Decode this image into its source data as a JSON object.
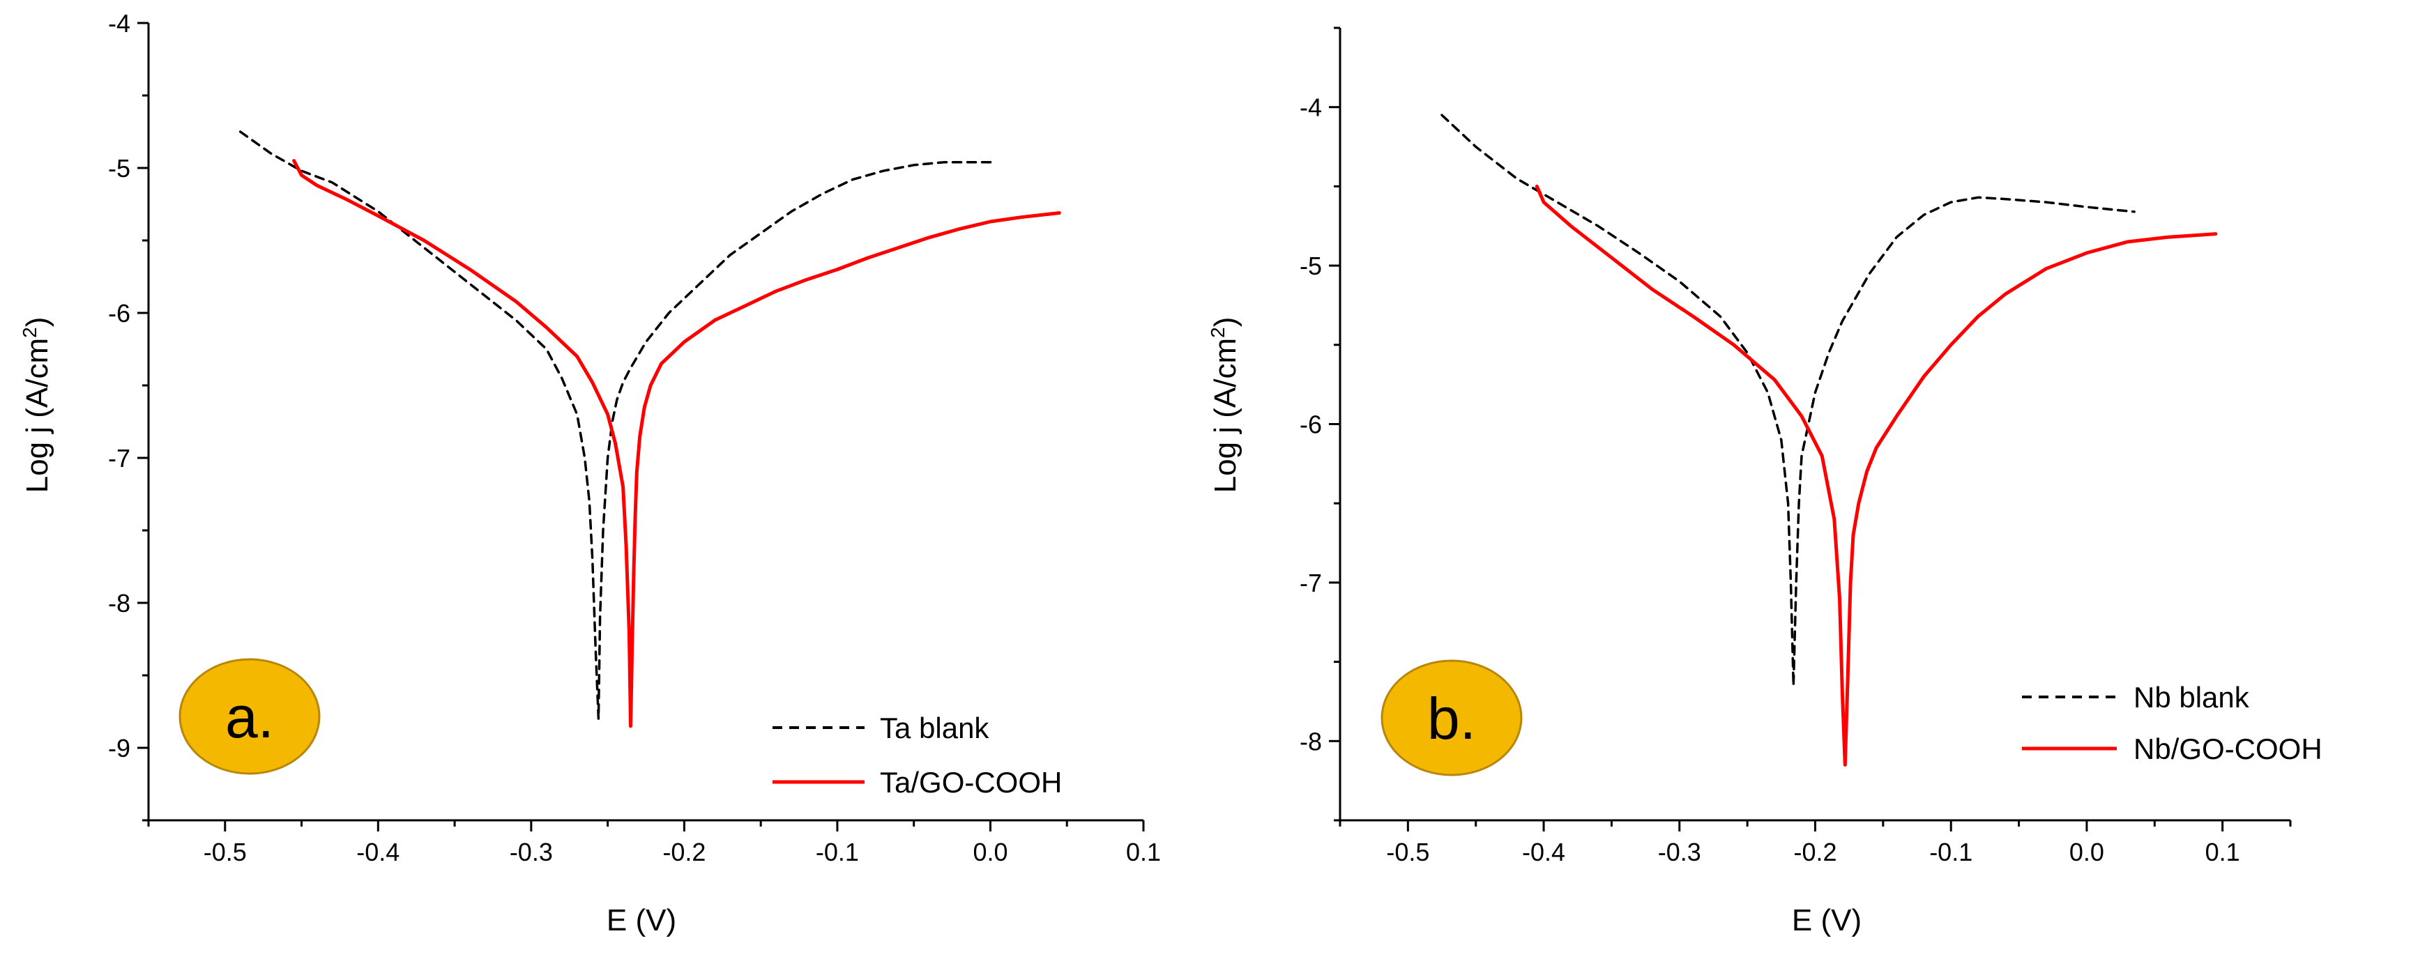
{
  "colors": {
    "blank": "#000000",
    "coated": "#ff0000",
    "badge_fill": "#f5b800",
    "badge_stroke": "#b8860b",
    "axis": "#000000"
  },
  "chart_data": [
    {
      "type": "line",
      "badge": "a.",
      "xlabel": "E (V)",
      "ylabel_main": "Log j (A/cm",
      "ylabel_sup": "2",
      "ylabel_close": ")",
      "xlim": [
        -0.55,
        0.1
      ],
      "ylim": [
        -9.5,
        -4
      ],
      "xticks": [
        -0.5,
        -0.4,
        -0.3,
        -0.2,
        -0.1,
        0.0,
        0.1
      ],
      "xtick_labels": [
        "-0.5",
        "-0.4",
        "-0.3",
        "-0.2",
        "-0.1",
        "0.0",
        "0.1"
      ],
      "yticks": [
        -9,
        -8,
        -7,
        -6,
        -5,
        -4
      ],
      "ytick_labels": [
        "-9",
        "-8",
        "-7",
        "-6",
        "-5",
        "-4"
      ],
      "legend": [
        "Ta blank",
        "Ta/GO-COOH"
      ],
      "series": [
        {
          "name": "Ta blank",
          "style": "dashed",
          "color": "#000000",
          "x": [
            -0.49,
            -0.47,
            -0.45,
            -0.43,
            -0.4,
            -0.37,
            -0.34,
            -0.31,
            -0.29,
            -0.28,
            -0.27,
            -0.265,
            -0.262,
            -0.26,
            -0.258,
            -0.256,
            -0.255,
            -0.253,
            -0.25,
            -0.247,
            -0.244,
            -0.24,
            -0.235,
            -0.225,
            -0.21,
            -0.19,
            -0.17,
            -0.15,
            -0.13,
            -0.11,
            -0.09,
            -0.07,
            -0.05,
            -0.03,
            -0.01,
            0.0
          ],
          "y": [
            -4.75,
            -4.9,
            -5.02,
            -5.1,
            -5.3,
            -5.55,
            -5.8,
            -6.05,
            -6.25,
            -6.45,
            -6.7,
            -7.0,
            -7.3,
            -7.7,
            -8.3,
            -8.8,
            -8.1,
            -7.5,
            -7.0,
            -6.75,
            -6.6,
            -6.48,
            -6.38,
            -6.2,
            -6.0,
            -5.8,
            -5.6,
            -5.45,
            -5.3,
            -5.18,
            -5.08,
            -5.02,
            -4.98,
            -4.96,
            -4.96,
            -4.96
          ]
        },
        {
          "name": "Ta/GO-COOH",
          "style": "solid",
          "color": "#ff0000",
          "x": [
            -0.455,
            -0.45,
            -0.44,
            -0.42,
            -0.4,
            -0.37,
            -0.34,
            -0.31,
            -0.29,
            -0.27,
            -0.26,
            -0.25,
            -0.245,
            -0.24,
            -0.238,
            -0.236,
            -0.235,
            -0.234,
            -0.233,
            -0.232,
            -0.231,
            -0.229,
            -0.226,
            -0.222,
            -0.215,
            -0.2,
            -0.18,
            -0.16,
            -0.14,
            -0.12,
            -0.1,
            -0.08,
            -0.06,
            -0.04,
            -0.02,
            0.0,
            0.02,
            0.045
          ],
          "y": [
            -4.95,
            -5.05,
            -5.12,
            -5.22,
            -5.33,
            -5.5,
            -5.7,
            -5.92,
            -6.1,
            -6.3,
            -6.48,
            -6.7,
            -6.9,
            -7.2,
            -7.6,
            -8.2,
            -8.85,
            -8.3,
            -7.8,
            -7.4,
            -7.1,
            -6.85,
            -6.65,
            -6.5,
            -6.35,
            -6.2,
            -6.05,
            -5.95,
            -5.85,
            -5.77,
            -5.7,
            -5.62,
            -5.55,
            -5.48,
            -5.42,
            -5.37,
            -5.34,
            -5.31
          ]
        }
      ]
    },
    {
      "type": "line",
      "badge": "b.",
      "xlabel": "E (V)",
      "ylabel_main": "Log j (A/cm",
      "ylabel_sup": "2",
      "ylabel_close": ")",
      "xlim": [
        -0.55,
        0.15
      ],
      "ylim": [
        -8.5,
        -3.5
      ],
      "xticks": [
        -0.5,
        -0.4,
        -0.3,
        -0.2,
        -0.1,
        0.0,
        0.1
      ],
      "xtick_labels": [
        "-0.5",
        "-0.4",
        "-0.3",
        "-0.2",
        "-0.1",
        "0.0",
        "0.1"
      ],
      "yticks": [
        -8,
        -7,
        -6,
        -5,
        -4
      ],
      "ytick_labels": [
        "-8",
        "-7",
        "-6",
        "-5",
        "-4"
      ],
      "legend": [
        "Nb blank",
        "Nb/GO-COOH"
      ],
      "series": [
        {
          "name": "Nb blank",
          "style": "dashed",
          "color": "#000000",
          "x": [
            -0.475,
            -0.45,
            -0.42,
            -0.39,
            -0.36,
            -0.33,
            -0.3,
            -0.27,
            -0.25,
            -0.235,
            -0.225,
            -0.22,
            -0.218,
            -0.216,
            -0.214,
            -0.212,
            -0.21,
            -0.205,
            -0.2,
            -0.19,
            -0.18,
            -0.16,
            -0.14,
            -0.12,
            -0.1,
            -0.08,
            -0.06,
            -0.03,
            0.0,
            0.035
          ],
          "y": [
            -4.05,
            -4.25,
            -4.45,
            -4.6,
            -4.75,
            -4.92,
            -5.1,
            -5.32,
            -5.55,
            -5.8,
            -6.1,
            -6.5,
            -7.0,
            -7.65,
            -7.0,
            -6.5,
            -6.2,
            -6.0,
            -5.8,
            -5.55,
            -5.35,
            -5.05,
            -4.82,
            -4.68,
            -4.6,
            -4.57,
            -4.58,
            -4.6,
            -4.63,
            -4.66
          ]
        },
        {
          "name": "Nb/GO-COOH",
          "style": "solid",
          "color": "#ff0000",
          "x": [
            -0.405,
            -0.4,
            -0.38,
            -0.35,
            -0.32,
            -0.29,
            -0.26,
            -0.23,
            -0.21,
            -0.195,
            -0.186,
            -0.182,
            -0.18,
            -0.178,
            -0.176,
            -0.174,
            -0.172,
            -0.168,
            -0.162,
            -0.155,
            -0.14,
            -0.12,
            -0.1,
            -0.08,
            -0.06,
            -0.03,
            0.0,
            0.03,
            0.06,
            0.095
          ],
          "y": [
            -4.5,
            -4.6,
            -4.75,
            -4.95,
            -5.15,
            -5.32,
            -5.5,
            -5.72,
            -5.95,
            -6.2,
            -6.6,
            -7.1,
            -7.7,
            -8.15,
            -7.6,
            -7.0,
            -6.7,
            -6.5,
            -6.3,
            -6.15,
            -5.95,
            -5.7,
            -5.5,
            -5.32,
            -5.18,
            -5.02,
            -4.92,
            -4.85,
            -4.82,
            -4.8
          ]
        }
      ]
    }
  ]
}
